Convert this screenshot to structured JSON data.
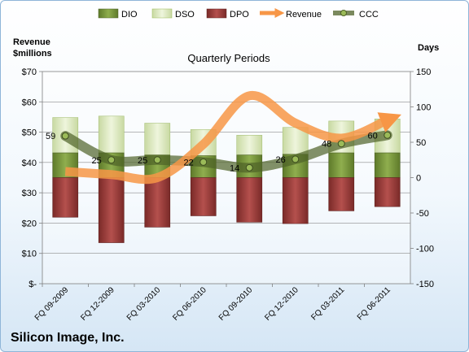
{
  "company": "Silicon Image, Inc.",
  "colors": {
    "dio": "#77933c",
    "dso": "#d7e4bd",
    "dpo": "#953735",
    "revenue": "#f79646",
    "ccc": "#4f6228",
    "frame_border": "#8fb5d8",
    "grid": "#7f7f7f"
  },
  "chart_data": {
    "type": "bar",
    "title": "Quarterly Periods",
    "left_axis_label_line1": "Revenue",
    "left_axis_label_line2": "$millions",
    "right_axis_label": "Days",
    "left_ylim": [
      0,
      70
    ],
    "left_ticks": [
      {
        "v": 0,
        "label": "$-"
      },
      {
        "v": 10,
        "label": "$10"
      },
      {
        "v": 20,
        "label": "$20"
      },
      {
        "v": 30,
        "label": "$30"
      },
      {
        "v": 40,
        "label": "$40"
      },
      {
        "v": 50,
        "label": "$50"
      },
      {
        "v": 60,
        "label": "$60"
      },
      {
        "v": 70,
        "label": "$70"
      }
    ],
    "right_ylim": [
      -150,
      150
    ],
    "right_ticks": [
      {
        "v": -150,
        "label": "-150"
      },
      {
        "v": -100,
        "label": "-100"
      },
      {
        "v": -50,
        "label": "-50"
      },
      {
        "v": 0,
        "label": "0"
      },
      {
        "v": 50,
        "label": "50"
      },
      {
        "v": 100,
        "label": "100"
      },
      {
        "v": 150,
        "label": "150"
      }
    ],
    "grid": true,
    "legend_position": "top",
    "categories": [
      "FQ 09-2009",
      "FQ 12-2009",
      "FQ 03-2010",
      "FQ 06-2010",
      "FQ 09-2010",
      "FQ 12-2010",
      "FQ 03-2011",
      "FQ 06-2011"
    ],
    "series": [
      {
        "name": "DIO",
        "axis": "days",
        "values": [
          35,
          35,
          32,
          31,
          32,
          33,
          35,
          35
        ]
      },
      {
        "name": "DSO",
        "axis": "days",
        "values": [
          50,
          52,
          45,
          37,
          28,
          38,
          45,
          48
        ]
      },
      {
        "name": "DPO",
        "axis": "days",
        "values": [
          -56,
          -92,
          -70,
          -54,
          -63,
          -65,
          -47,
          -41
        ]
      },
      {
        "name": "Revenue",
        "axis": "revenue",
        "values": [
          37,
          36,
          35,
          46,
          62,
          53,
          48,
          54
        ]
      },
      {
        "name": "CCC",
        "axis": "days",
        "values": [
          59,
          25,
          25,
          22,
          14,
          26,
          48,
          60
        ]
      }
    ],
    "data_labels": [
      "59",
      "25",
      "25",
      "22",
      "14",
      "26",
      "48",
      "60"
    ]
  }
}
